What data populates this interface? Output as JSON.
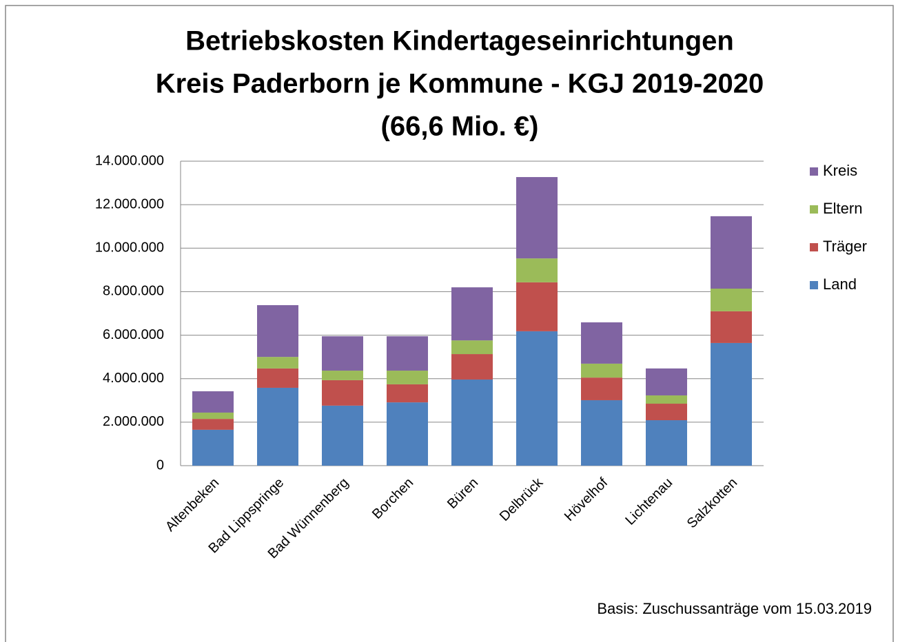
{
  "chart_data": {
    "type": "stacked_bar",
    "title": [
      "Betriebskosten Kindertageseinrichtungen",
      "Kreis Paderborn je Kommune - KGJ 2019-2020",
      "(66,6 Mio. €)"
    ],
    "categories": [
      "Altenbeken",
      "Bad Lippspringe",
      "Bad Wünnenberg",
      "Borchen",
      "Büren",
      "Delbrück",
      "Hövelhof",
      "Lichtenau",
      "Salzkotten"
    ],
    "series": [
      {
        "name": "Land",
        "color": "#4f81bd",
        "values": [
          1650000,
          3580000,
          2760000,
          2910000,
          3960000,
          6180000,
          3010000,
          2090000,
          5640000
        ]
      },
      {
        "name": "Träger",
        "color": "#c0504d",
        "values": [
          500000,
          890000,
          1170000,
          830000,
          1170000,
          2250000,
          1040000,
          760000,
          1460000
        ]
      },
      {
        "name": "Eltern",
        "color": "#9bbb59",
        "values": [
          290000,
          530000,
          440000,
          630000,
          630000,
          1100000,
          640000,
          380000,
          1040000
        ]
      },
      {
        "name": "Kreis",
        "color": "#8064a2",
        "values": [
          980000,
          2380000,
          1580000,
          1580000,
          2440000,
          3740000,
          1900000,
          1240000,
          3330000
        ]
      }
    ],
    "ylim": [
      0,
      14000000
    ],
    "yticks": [
      0,
      {
        "value": 2000000,
        "label": "2.000.000"
      },
      {
        "value": 4000000,
        "label": "4.000.000"
      },
      {
        "value": 6000000,
        "label": "6.000.000"
      },
      {
        "value": 8000000,
        "label": "8.000.000"
      },
      {
        "value": 10000000,
        "label": "10.000.000"
      },
      {
        "value": 12000000,
        "label": "12.000.000"
      },
      {
        "value": 14000000,
        "label": "14.000.000"
      }
    ],
    "grid": true,
    "legend": "right",
    "footnote": "Basis: Zuschussanträge vom 15.03.2019"
  }
}
